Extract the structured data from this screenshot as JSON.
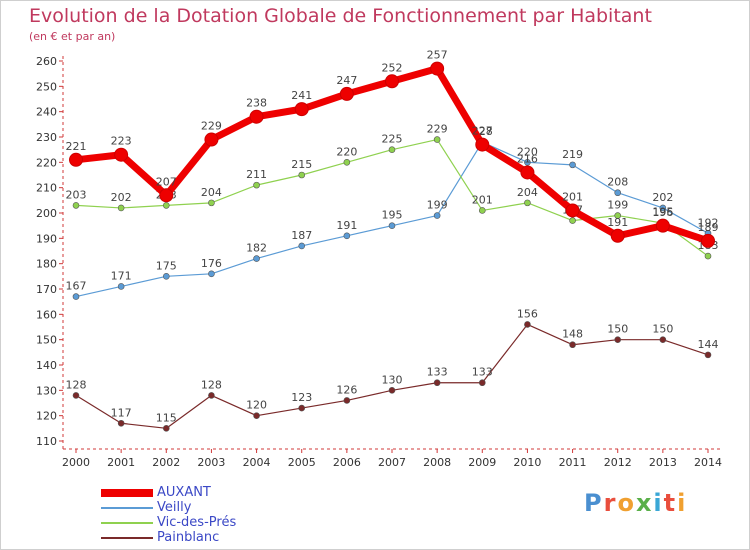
{
  "header": {
    "title": "Evolution de la Dotation Globale de Fonctionnement par Habitant",
    "subtitle": "(en € et par an)"
  },
  "logo": {
    "text": "Proxiti"
  },
  "chart_data": {
    "type": "line",
    "title": "Evolution de la Dotation Globale de Fonctionnement par Habitant",
    "subtitle": "(en € et par an)",
    "xlabel": "",
    "ylabel": "",
    "x": [
      "2000",
      "2001",
      "2002",
      "2003",
      "2004",
      "2005",
      "2006",
      "2007",
      "2008",
      "2009",
      "2010",
      "2011",
      "2012",
      "2013",
      "2014"
    ],
    "ylim": [
      110,
      260
    ],
    "yticks": [
      110,
      120,
      130,
      140,
      150,
      160,
      170,
      180,
      190,
      200,
      210,
      220,
      230,
      240,
      250,
      260
    ],
    "grid": false,
    "legend_position": "bottom-left",
    "series": [
      {
        "name": "AUXANT",
        "color": "#ee0000",
        "values": [
          221,
          223,
          207,
          229,
          238,
          241,
          247,
          252,
          257,
          227,
          216,
          201,
          191,
          195,
          189
        ]
      },
      {
        "name": "Veilly",
        "color": "#5b9bd5",
        "values": [
          167,
          171,
          175,
          176,
          182,
          187,
          191,
          195,
          199,
          228,
          220,
          219,
          208,
          202,
          192
        ]
      },
      {
        "name": "Vic-des-Prés",
        "color": "#8fd14f",
        "values": [
          203,
          202,
          203,
          204,
          211,
          215,
          220,
          225,
          229,
          201,
          204,
          197,
          199,
          196,
          183
        ]
      },
      {
        "name": "Painblanc",
        "color": "#7a2a2a",
        "values": [
          128,
          117,
          115,
          128,
          120,
          123,
          126,
          130,
          133,
          133,
          156,
          148,
          150,
          150,
          144
        ]
      }
    ]
  }
}
